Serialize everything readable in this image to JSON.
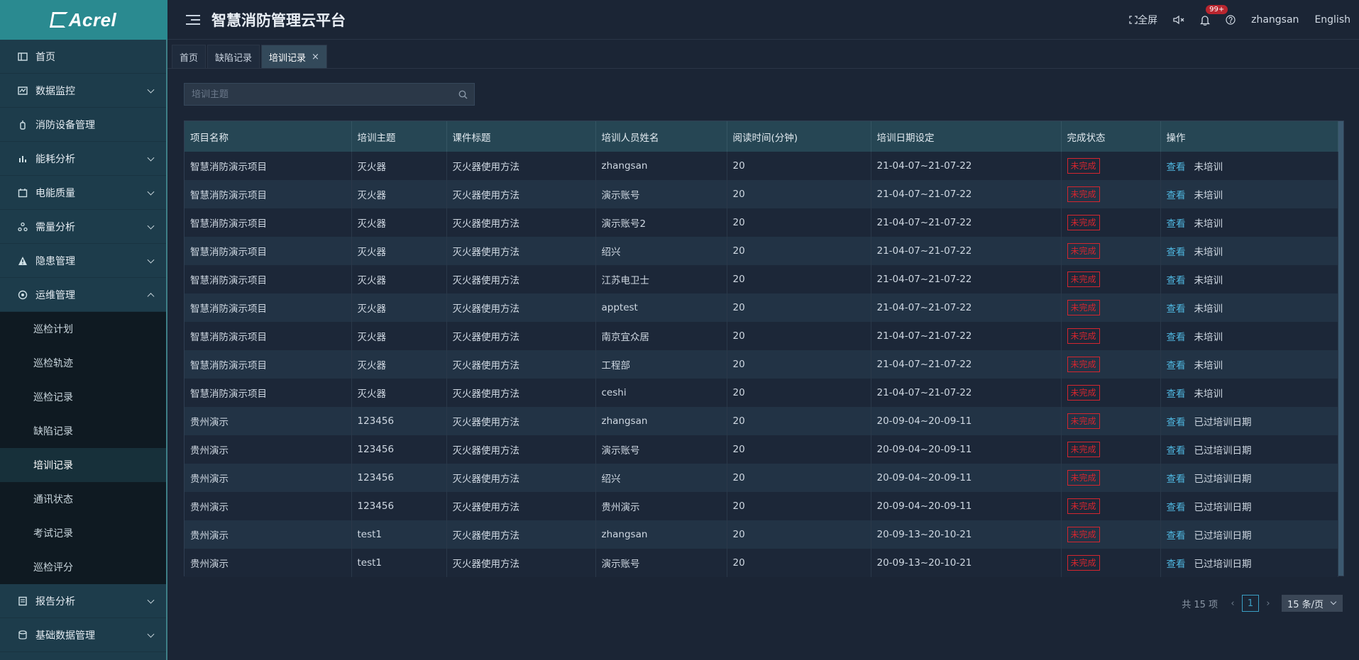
{
  "brand": {
    "logo_text": "Acrel"
  },
  "header": {
    "title": "智慧消防管理云平台",
    "fullscreen_label": "全屏",
    "notification_count": "99+",
    "username": "zhangsan",
    "language": "English"
  },
  "sidebar": {
    "items": [
      {
        "label": "首页",
        "icon": "home-icon"
      },
      {
        "label": "数据监控",
        "icon": "monitor-icon"
      },
      {
        "label": "消防设备管理",
        "icon": "extinguisher-icon"
      },
      {
        "label": "能耗分析",
        "icon": "bar-chart-icon"
      },
      {
        "label": "电能质量",
        "icon": "calendar-icon"
      },
      {
        "label": "需量分析",
        "icon": "network-icon"
      },
      {
        "label": "隐患管理",
        "icon": "warning-icon"
      },
      {
        "label": "运维管理",
        "icon": "maintenance-icon"
      },
      {
        "label": "报告分析",
        "icon": "report-icon"
      },
      {
        "label": "基础数据管理",
        "icon": "database-icon"
      }
    ],
    "submenu": [
      "巡检计划",
      "巡检轨迹",
      "巡检记录",
      "缺陷记录",
      "培训记录",
      "通讯状态",
      "考试记录",
      "巡检评分"
    ],
    "active_submenu": "培训记录"
  },
  "tabs": [
    {
      "label": "首页"
    },
    {
      "label": "缺陷记录"
    },
    {
      "label": "培训记录"
    }
  ],
  "search": {
    "placeholder": "培训主题"
  },
  "table": {
    "columns": [
      "项目名称",
      "培训主题",
      "课件标题",
      "培训人员姓名",
      "阅读时间(分钟)",
      "培训日期设定",
      "完成状态",
      "操作"
    ],
    "view_label": "查看",
    "rows": [
      [
        "智慧消防演示项目",
        "灭火器",
        "灭火器使用方法",
        "zhangsan",
        "20",
        "21-04-07~21-07-22",
        "未完成",
        "未培训"
      ],
      [
        "智慧消防演示项目",
        "灭火器",
        "灭火器使用方法",
        "演示账号",
        "20",
        "21-04-07~21-07-22",
        "未完成",
        "未培训"
      ],
      [
        "智慧消防演示项目",
        "灭火器",
        "灭火器使用方法",
        "演示账号2",
        "20",
        "21-04-07~21-07-22",
        "未完成",
        "未培训"
      ],
      [
        "智慧消防演示项目",
        "灭火器",
        "灭火器使用方法",
        "绍兴",
        "20",
        "21-04-07~21-07-22",
        "未完成",
        "未培训"
      ],
      [
        "智慧消防演示项目",
        "灭火器",
        "灭火器使用方法",
        "江苏电卫士",
        "20",
        "21-04-07~21-07-22",
        "未完成",
        "未培训"
      ],
      [
        "智慧消防演示项目",
        "灭火器",
        "灭火器使用方法",
        "apptest",
        "20",
        "21-04-07~21-07-22",
        "未完成",
        "未培训"
      ],
      [
        "智慧消防演示项目",
        "灭火器",
        "灭火器使用方法",
        "南京宜众居",
        "20",
        "21-04-07~21-07-22",
        "未完成",
        "未培训"
      ],
      [
        "智慧消防演示项目",
        "灭火器",
        "灭火器使用方法",
        "工程部",
        "20",
        "21-04-07~21-07-22",
        "未完成",
        "未培训"
      ],
      [
        "智慧消防演示项目",
        "灭火器",
        "灭火器使用方法",
        "ceshi",
        "20",
        "21-04-07~21-07-22",
        "未完成",
        "未培训"
      ],
      [
        "贵州演示",
        "123456",
        "灭火器使用方法",
        "zhangsan",
        "20",
        "20-09-04~20-09-11",
        "未完成",
        "已过培训日期"
      ],
      [
        "贵州演示",
        "123456",
        "灭火器使用方法",
        "演示账号",
        "20",
        "20-09-04~20-09-11",
        "未完成",
        "已过培训日期"
      ],
      [
        "贵州演示",
        "123456",
        "灭火器使用方法",
        "绍兴",
        "20",
        "20-09-04~20-09-11",
        "未完成",
        "已过培训日期"
      ],
      [
        "贵州演示",
        "123456",
        "灭火器使用方法",
        "贵州演示",
        "20",
        "20-09-04~20-09-11",
        "未完成",
        "已过培训日期"
      ],
      [
        "贵州演示",
        "test1",
        "灭火器使用方法",
        "zhangsan",
        "20",
        "20-09-13~20-10-21",
        "未完成",
        "已过培训日期"
      ],
      [
        "贵州演示",
        "test1",
        "灭火器使用方法",
        "演示账号",
        "20",
        "20-09-13~20-10-21",
        "未完成",
        "已过培训日期"
      ]
    ]
  },
  "pagination": {
    "total": "共 15 项",
    "current_page": "1",
    "page_size": "15 条/页"
  },
  "colors": {
    "accent": "#2a8a90",
    "status_red": "#d3262f",
    "link_blue": "#4fb7e0"
  }
}
